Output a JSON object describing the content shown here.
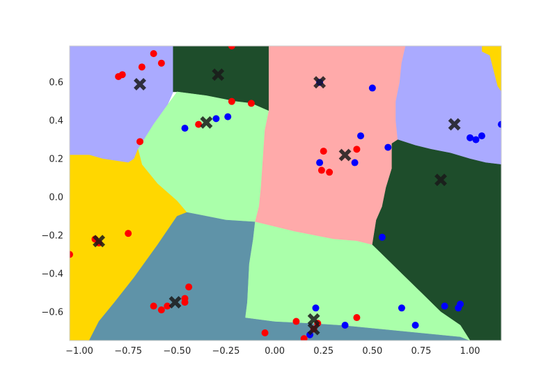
{
  "chart_data": {
    "type": "scatter",
    "title": "",
    "xlabel": "",
    "ylabel": "",
    "xlim": [
      -1.05,
      1.16
    ],
    "ylim": [
      -0.75,
      0.79
    ],
    "grid": false,
    "x_ticks": [
      "−1.00",
      "−0.75",
      "−0.50",
      "−0.25",
      "0.00",
      "0.25",
      "0.50",
      "0.75",
      "1.00"
    ],
    "x_tick_values": [
      -1.0,
      -0.75,
      -0.5,
      -0.25,
      0.0,
      0.25,
      0.5,
      0.75,
      1.0
    ],
    "y_ticks": [
      "−0.6",
      "−0.4",
      "−0.2",
      "0.0",
      "0.2",
      "0.4",
      "0.6"
    ],
    "y_tick_values": [
      -0.6,
      -0.4,
      -0.2,
      0.0,
      0.2,
      0.4,
      0.6
    ],
    "colors": {
      "lavender": "#aaaaff",
      "darkgreen": "#1e4d2b",
      "pink": "#ffaaaa",
      "lightgreen": "#aaffaa",
      "gold": "#ffd700",
      "steel": "#5f93a8",
      "red": "#ff0000",
      "blue": "#0000ff",
      "centroid": "#1a1a1a"
    },
    "regions": [
      {
        "name": "lavender-left",
        "color": "lavender",
        "polygon": [
          [
            -1.05,
            0.79
          ],
          [
            -0.52,
            0.79
          ],
          [
            -0.52,
            0.55
          ],
          [
            -0.55,
            0.48
          ],
          [
            -0.62,
            0.38
          ],
          [
            -0.67,
            0.3
          ],
          [
            -0.72,
            0.2
          ],
          [
            -0.75,
            0.18
          ],
          [
            -0.88,
            0.2
          ],
          [
            -0.95,
            0.22
          ],
          [
            -1.05,
            0.22
          ]
        ]
      },
      {
        "name": "darkgreen-top",
        "color": "darkgreen",
        "polygon": [
          [
            -0.52,
            0.79
          ],
          [
            -0.03,
            0.79
          ],
          [
            -0.03,
            0.45
          ],
          [
            -0.12,
            0.49
          ],
          [
            -0.2,
            0.5
          ],
          [
            -0.35,
            0.53
          ],
          [
            -0.5,
            0.55
          ],
          [
            -0.52,
            0.55
          ]
        ]
      },
      {
        "name": "lightgreen-middle",
        "color": "lightgreen",
        "polygon": [
          [
            -0.5,
            0.55
          ],
          [
            -0.35,
            0.53
          ],
          [
            -0.2,
            0.5
          ],
          [
            -0.12,
            0.49
          ],
          [
            -0.03,
            0.45
          ],
          [
            -0.05,
            0.35
          ],
          [
            -0.06,
            0.2
          ],
          [
            -0.07,
            0.05
          ],
          [
            -0.08,
            -0.05
          ],
          [
            -0.1,
            -0.13
          ],
          [
            -0.25,
            -0.12
          ],
          [
            -0.4,
            -0.09
          ],
          [
            -0.45,
            -0.08
          ],
          [
            -0.5,
            -0.02
          ],
          [
            -0.6,
            0.07
          ],
          [
            -0.68,
            0.17
          ],
          [
            -0.7,
            0.25
          ],
          [
            -0.62,
            0.38
          ],
          [
            -0.55,
            0.48
          ]
        ]
      },
      {
        "name": "gold-left",
        "color": "gold",
        "polygon": [
          [
            -1.05,
            0.22
          ],
          [
            -0.95,
            0.22
          ],
          [
            -0.88,
            0.2
          ],
          [
            -0.75,
            0.18
          ],
          [
            -0.72,
            0.2
          ],
          [
            -0.7,
            0.25
          ],
          [
            -0.68,
            0.17
          ],
          [
            -0.6,
            0.07
          ],
          [
            -0.5,
            -0.02
          ],
          [
            -0.45,
            -0.08
          ],
          [
            -0.5,
            -0.1
          ],
          [
            -0.6,
            -0.25
          ],
          [
            -0.72,
            -0.42
          ],
          [
            -0.82,
            -0.55
          ],
          [
            -0.9,
            -0.65
          ],
          [
            -0.95,
            -0.75
          ],
          [
            -1.05,
            -0.75
          ]
        ]
      },
      {
        "name": "gold-topright",
        "color": "gold",
        "polygon": [
          [
            1.06,
            0.79
          ],
          [
            1.16,
            0.79
          ],
          [
            1.16,
            0.55
          ],
          [
            1.14,
            0.58
          ],
          [
            1.12,
            0.66
          ],
          [
            1.1,
            0.74
          ],
          [
            1.06,
            0.76
          ]
        ]
      },
      {
        "name": "steel-bottom",
        "color": "steel",
        "polygon": [
          [
            -0.45,
            -0.08
          ],
          [
            -0.4,
            -0.09
          ],
          [
            -0.25,
            -0.12
          ],
          [
            -0.1,
            -0.13
          ],
          [
            -0.11,
            -0.22
          ],
          [
            -0.13,
            -0.35
          ],
          [
            -0.14,
            -0.55
          ],
          [
            -0.15,
            -0.63
          ],
          [
            0.0,
            -0.65
          ],
          [
            0.2,
            -0.66
          ],
          [
            0.35,
            -0.67
          ],
          [
            0.55,
            -0.69
          ],
          [
            0.75,
            -0.71
          ],
          [
            0.95,
            -0.73
          ],
          [
            1.0,
            -0.75
          ],
          [
            -0.95,
            -0.75
          ],
          [
            -0.9,
            -0.65
          ],
          [
            -0.82,
            -0.55
          ],
          [
            -0.72,
            -0.42
          ],
          [
            -0.6,
            -0.25
          ],
          [
            -0.5,
            -0.1
          ]
        ]
      },
      {
        "name": "pink-center",
        "color": "pink",
        "polygon": [
          [
            -0.03,
            0.79
          ],
          [
            0.67,
            0.79
          ],
          [
            0.65,
            0.7
          ],
          [
            0.64,
            0.6
          ],
          [
            0.62,
            0.5
          ],
          [
            0.62,
            0.4
          ],
          [
            0.63,
            0.3
          ],
          [
            0.6,
            0.28
          ],
          [
            0.6,
            0.15
          ],
          [
            0.57,
            0.05
          ],
          [
            0.55,
            -0.05
          ],
          [
            0.52,
            -0.12
          ],
          [
            0.5,
            -0.25
          ],
          [
            0.42,
            -0.23
          ],
          [
            0.3,
            -0.22
          ],
          [
            0.2,
            -0.2
          ],
          [
            0.1,
            -0.18
          ],
          [
            -0.1,
            -0.13
          ],
          [
            -0.08,
            -0.05
          ],
          [
            -0.07,
            0.05
          ],
          [
            -0.06,
            0.2
          ],
          [
            -0.05,
            0.35
          ],
          [
            -0.03,
            0.45
          ]
        ]
      },
      {
        "name": "lavender-right",
        "color": "lavender",
        "polygon": [
          [
            0.67,
            0.79
          ],
          [
            1.06,
            0.79
          ],
          [
            1.06,
            0.76
          ],
          [
            1.1,
            0.74
          ],
          [
            1.12,
            0.66
          ],
          [
            1.14,
            0.58
          ],
          [
            1.16,
            0.55
          ],
          [
            1.16,
            0.17
          ],
          [
            1.08,
            0.18
          ],
          [
            1.0,
            0.2
          ],
          [
            0.9,
            0.23
          ],
          [
            0.8,
            0.25
          ],
          [
            0.72,
            0.27
          ],
          [
            0.63,
            0.3
          ],
          [
            0.62,
            0.4
          ],
          [
            0.62,
            0.5
          ],
          [
            0.64,
            0.6
          ],
          [
            0.65,
            0.7
          ]
        ]
      },
      {
        "name": "darkgreen-right",
        "color": "darkgreen",
        "polygon": [
          [
            0.63,
            0.3
          ],
          [
            0.72,
            0.27
          ],
          [
            0.8,
            0.25
          ],
          [
            0.9,
            0.23
          ],
          [
            1.0,
            0.2
          ],
          [
            1.08,
            0.18
          ],
          [
            1.16,
            0.17
          ],
          [
            1.16,
            -0.75
          ],
          [
            1.0,
            -0.75
          ],
          [
            0.95,
            -0.67
          ],
          [
            0.85,
            -0.6
          ],
          [
            0.75,
            -0.5
          ],
          [
            0.65,
            -0.4
          ],
          [
            0.55,
            -0.3
          ],
          [
            0.5,
            -0.25
          ],
          [
            0.52,
            -0.12
          ],
          [
            0.55,
            -0.05
          ],
          [
            0.57,
            0.05
          ],
          [
            0.6,
            0.15
          ],
          [
            0.6,
            0.28
          ]
        ]
      },
      {
        "name": "lightgreen-bottom",
        "color": "lightgreen",
        "polygon": [
          [
            -0.1,
            -0.13
          ],
          [
            0.1,
            -0.18
          ],
          [
            0.2,
            -0.2
          ],
          [
            0.3,
            -0.22
          ],
          [
            0.42,
            -0.23
          ],
          [
            0.5,
            -0.25
          ],
          [
            0.55,
            -0.3
          ],
          [
            0.65,
            -0.4
          ],
          [
            0.75,
            -0.5
          ],
          [
            0.85,
            -0.6
          ],
          [
            0.95,
            -0.67
          ],
          [
            1.0,
            -0.75
          ],
          [
            0.95,
            -0.73
          ],
          [
            0.75,
            -0.71
          ],
          [
            0.55,
            -0.69
          ],
          [
            0.35,
            -0.67
          ],
          [
            0.2,
            -0.66
          ],
          [
            0.0,
            -0.65
          ],
          [
            -0.15,
            -0.63
          ],
          [
            -0.14,
            -0.55
          ],
          [
            -0.13,
            -0.35
          ],
          [
            -0.11,
            -0.22
          ]
        ]
      }
    ],
    "points_red": [
      [
        -0.62,
        0.75
      ],
      [
        -0.68,
        0.68
      ],
      [
        -0.58,
        0.7
      ],
      [
        -0.8,
        0.63
      ],
      [
        -0.78,
        0.64
      ],
      [
        -0.22,
        0.79
      ],
      [
        -0.22,
        0.5
      ],
      [
        -0.12,
        0.49
      ],
      [
        -0.39,
        0.38
      ],
      [
        -0.69,
        0.29
      ],
      [
        0.25,
        0.24
      ],
      [
        0.42,
        0.25
      ],
      [
        0.24,
        0.14
      ],
      [
        0.28,
        0.13
      ],
      [
        -0.92,
        -0.22
      ],
      [
        -0.75,
        -0.19
      ],
      [
        -1.05,
        -0.3
      ],
      [
        -0.9,
        -0.24
      ],
      [
        -0.44,
        -0.47
      ],
      [
        -0.46,
        -0.53
      ],
      [
        -0.46,
        -0.55
      ],
      [
        -0.62,
        -0.57
      ],
      [
        -0.58,
        -0.59
      ],
      [
        -0.55,
        -0.57
      ],
      [
        -0.05,
        -0.71
      ],
      [
        0.11,
        -0.65
      ],
      [
        0.15,
        -0.74
      ],
      [
        0.42,
        -0.63
      ],
      [
        0.22,
        -0.66
      ],
      [
        0.2,
        -0.69
      ]
    ],
    "points_blue": [
      [
        0.5,
        0.57
      ],
      [
        0.23,
        0.6
      ],
      [
        -0.46,
        0.36
      ],
      [
        -0.3,
        0.41
      ],
      [
        -0.24,
        0.42
      ],
      [
        0.44,
        0.32
      ],
      [
        0.58,
        0.26
      ],
      [
        0.23,
        0.18
      ],
      [
        0.41,
        0.18
      ],
      [
        1.0,
        0.31
      ],
      [
        1.03,
        0.3
      ],
      [
        1.06,
        0.32
      ],
      [
        1.16,
        0.38
      ],
      [
        0.55,
        -0.21
      ],
      [
        0.21,
        -0.58
      ],
      [
        0.36,
        -0.67
      ],
      [
        0.65,
        -0.58
      ],
      [
        0.72,
        -0.67
      ],
      [
        0.87,
        -0.57
      ],
      [
        0.94,
        -0.58
      ],
      [
        0.95,
        -0.56
      ],
      [
        0.18,
        -0.72
      ]
    ],
    "centroids": [
      [
        -0.69,
        0.59
      ],
      [
        -0.29,
        0.64
      ],
      [
        0.23,
        0.6
      ],
      [
        -0.35,
        0.39
      ],
      [
        0.36,
        0.22
      ],
      [
        0.92,
        0.38
      ],
      [
        0.85,
        0.09
      ],
      [
        -0.9,
        -0.23
      ],
      [
        -0.51,
        -0.55
      ],
      [
        0.2,
        -0.64
      ],
      [
        0.2,
        -0.69
      ]
    ]
  }
}
